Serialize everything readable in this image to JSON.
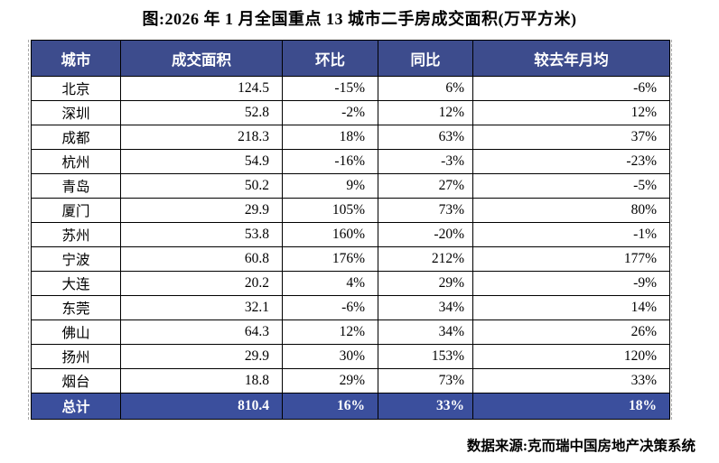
{
  "page": {
    "title": "图:2026 年 1 月全国重点 13 城市二手房成交面积(万平方米)",
    "source_note": "数据来源:克而瑞中国房地产决策系统"
  },
  "chart_data": {
    "type": "table",
    "title": "图:2026 年 1 月全国重点 13 城市二手房成交面积(万平方米)",
    "columns": [
      "城市",
      "成交面积",
      "环比",
      "同比",
      "较去年月均"
    ],
    "rows": [
      [
        "北京",
        "124.5",
        "-15%",
        "6%",
        "-6%"
      ],
      [
        "深圳",
        "52.8",
        "-2%",
        "12%",
        "12%"
      ],
      [
        "成都",
        "218.3",
        "18%",
        "63%",
        "37%"
      ],
      [
        "杭州",
        "54.9",
        "-16%",
        "-3%",
        "-23%"
      ],
      [
        "青岛",
        "50.2",
        "9%",
        "27%",
        "-5%"
      ],
      [
        "厦门",
        "29.9",
        "105%",
        "73%",
        "80%"
      ],
      [
        "苏州",
        "53.8",
        "160%",
        "-20%",
        "-1%"
      ],
      [
        "宁波",
        "60.8",
        "176%",
        "212%",
        "177%"
      ],
      [
        "大连",
        "20.2",
        "4%",
        "29%",
        "-9%"
      ],
      [
        "东莞",
        "32.1",
        "-6%",
        "34%",
        "14%"
      ],
      [
        "佛山",
        "64.3",
        "12%",
        "34%",
        "26%"
      ],
      [
        "扬州",
        "29.9",
        "30%",
        "153%",
        "120%"
      ],
      [
        "烟台",
        "18.8",
        "29%",
        "73%",
        "33%"
      ]
    ],
    "total_row": [
      "总计",
      "810.4",
      "16%",
      "33%",
      "18%"
    ]
  },
  "colors": {
    "header_bg": "#3d4c8d",
    "total_bg": "#3b4f9d",
    "header_text": "#ffffff",
    "border": "#000000"
  }
}
